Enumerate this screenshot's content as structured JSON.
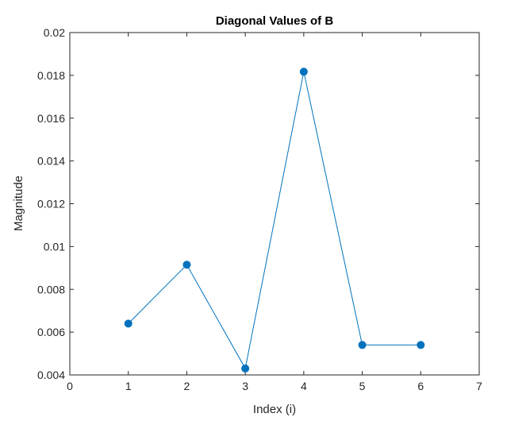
{
  "chart_data": {
    "type": "line",
    "title": "Diagonal Values of B",
    "xlabel": "Index (i)",
    "ylabel": "Magnitude",
    "xlim": [
      0,
      7
    ],
    "ylim": [
      0.004,
      0.02
    ],
    "xticks": [
      0,
      1,
      2,
      3,
      4,
      5,
      6,
      7
    ],
    "xtick_labels": [
      "0",
      "1",
      "2",
      "3",
      "4",
      "5",
      "6",
      "7"
    ],
    "yticks": [
      0.004,
      0.006,
      0.008,
      0.01,
      0.012,
      0.014,
      0.016,
      0.018,
      0.02
    ],
    "ytick_labels": [
      "0.004",
      "0.006",
      "0.008",
      "0.01",
      "0.012",
      "0.014",
      "0.016",
      "0.018",
      "0.02"
    ],
    "grid": false,
    "legend": "none",
    "series": [
      {
        "x": [
          1,
          2,
          3,
          4,
          5,
          6
        ],
        "y": [
          0.0064,
          0.00915,
          0.0043,
          0.01817,
          0.0054,
          0.0054
        ],
        "color": "#0072BD",
        "marker": "circle"
      }
    ]
  }
}
